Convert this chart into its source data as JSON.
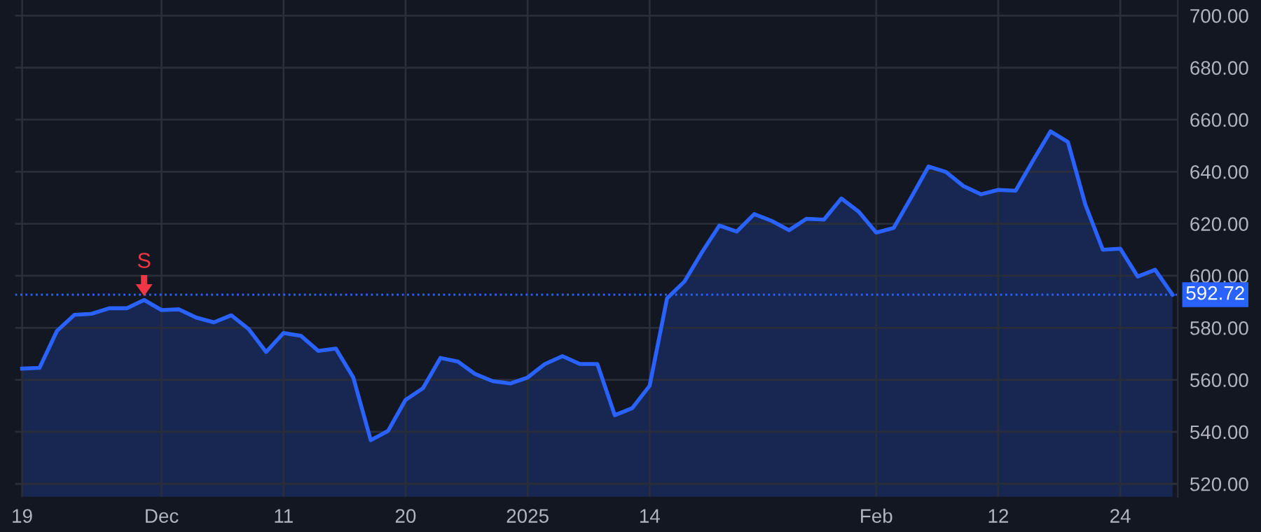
{
  "chart_data": {
    "type": "area",
    "categories": [
      "19",
      null,
      null,
      null,
      null,
      null,
      null,
      null,
      "Dec",
      null,
      null,
      null,
      null,
      null,
      null,
      "11",
      null,
      null,
      null,
      null,
      null,
      null,
      "20",
      null,
      null,
      null,
      null,
      null,
      null,
      "2025",
      null,
      null,
      null,
      null,
      null,
      null,
      "14",
      null,
      null,
      null,
      null,
      null,
      null,
      null,
      null,
      null,
      null,
      null,
      null,
      "Feb",
      null,
      null,
      null,
      null,
      null,
      null,
      "12",
      null,
      null,
      null,
      null,
      null,
      null,
      "24",
      null,
      null,
      null
    ],
    "series": [
      {
        "color": "#2962ff",
        "values": [
          564.3,
          564.6,
          578.8,
          585.0,
          585.4,
          587.5,
          587.5,
          590.7,
          586.8,
          587.1,
          583.9,
          582.1,
          584.8,
          579.5,
          570.7,
          578.0,
          576.9,
          571.1,
          572.0,
          560.9,
          536.8,
          540.4,
          552.3,
          556.8,
          568.4,
          567.0,
          562.2,
          559.5,
          558.6,
          560.9,
          566.1,
          569.1,
          566.1,
          566.1,
          546.4,
          549.1,
          557.7,
          591.3,
          597.8,
          609.0,
          619.3,
          617.0,
          623.7,
          621.1,
          617.5,
          621.9,
          621.6,
          629.7,
          624.6,
          616.6,
          618.4,
          630.0,
          642.0,
          639.9,
          634.5,
          631.3,
          633.0,
          632.7,
          644.3,
          655.5,
          651.4,
          627.3,
          610.0,
          610.4,
          599.7,
          602.3,
          592.72
        ]
      }
    ],
    "ylim": [
      515,
      706
    ],
    "yticks": [
      {
        "value": 520,
        "label": "520.00"
      },
      {
        "value": 540,
        "label": "540.00"
      },
      {
        "value": 560,
        "label": "560.00"
      },
      {
        "value": 580,
        "label": "580.00"
      },
      {
        "value": 600,
        "label": "600.00"
      },
      {
        "value": 620,
        "label": "620.00"
      },
      {
        "value": 640,
        "label": "640.00"
      },
      {
        "value": 660,
        "label": "660.00"
      },
      {
        "value": 680,
        "label": "680.00"
      },
      {
        "value": 700,
        "label": "700.00"
      }
    ],
    "ref_lines": [
      {
        "axis": "y",
        "value": 592.72,
        "label": "592.72",
        "color": "#2962ff",
        "line_style": "dotted"
      }
    ],
    "annotations": [
      {
        "text": "S",
        "y": 590.7
      }
    ],
    "grid": true,
    "legend": false
  }
}
